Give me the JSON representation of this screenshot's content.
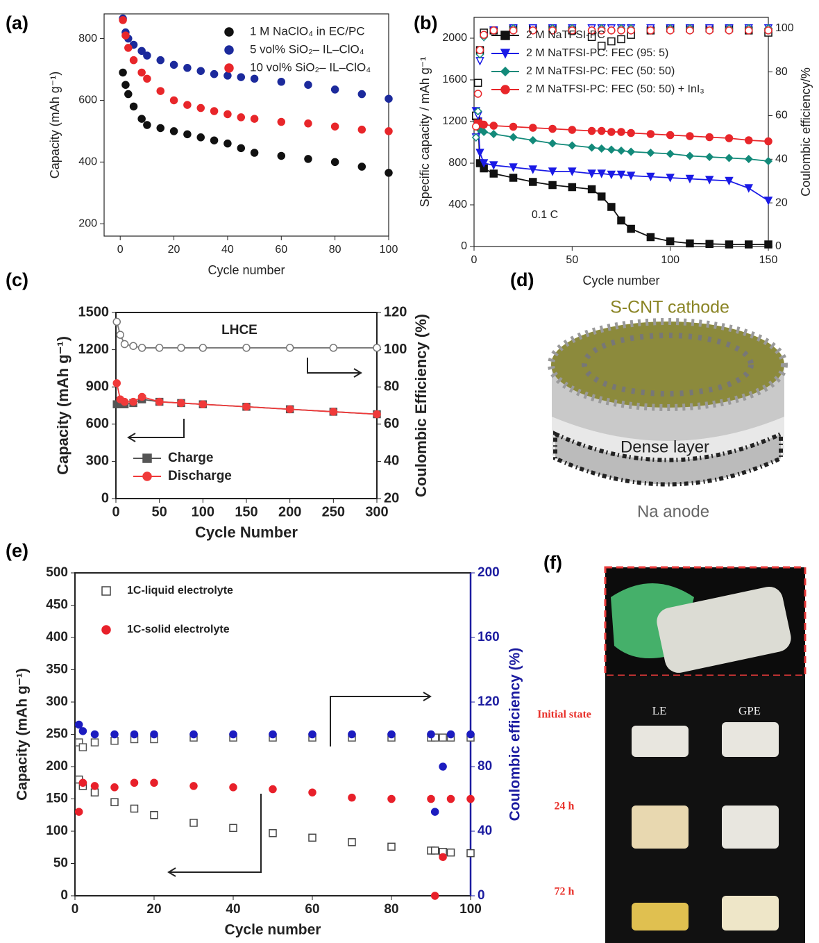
{
  "chart_data": [
    {
      "label": "(a)",
      "type": "scatter",
      "xlabel": "Cycle number",
      "ylabel": "Capacity (mAh g⁻¹)",
      "xlim": [
        -6,
        100
      ],
      "ylim": [
        160,
        880
      ],
      "xticks": [
        0,
        20,
        40,
        60,
        80,
        100
      ],
      "yticks": [
        200,
        400,
        600,
        800
      ],
      "legend": "upper right",
      "x": [
        1,
        2,
        3,
        5,
        8,
        10,
        15,
        20,
        25,
        30,
        35,
        40,
        45,
        50,
        60,
        70,
        80,
        90,
        100
      ],
      "series": [
        {
          "name": "1 M NaClO₄ in EC/PC",
          "color": "#111111",
          "marker": "circle",
          "filled": true,
          "line": false,
          "values": [
            690,
            650,
            620,
            580,
            540,
            520,
            510,
            500,
            490,
            480,
            470,
            460,
            445,
            430,
            420,
            410,
            400,
            385,
            365
          ]
        },
        {
          "name": "5 vol% SiO₂– IL–ClO₄",
          "color": "#1c2a9c",
          "marker": "circle",
          "filled": true,
          "line": false,
          "values": [
            865,
            820,
            800,
            780,
            760,
            745,
            730,
            715,
            705,
            695,
            685,
            680,
            675,
            670,
            660,
            650,
            635,
            620,
            605
          ]
        },
        {
          "name": "10 vol% SiO₂– IL–ClO₄",
          "color": "#e8262a",
          "marker": "circle",
          "filled": true,
          "line": false,
          "values": [
            860,
            810,
            770,
            730,
            690,
            670,
            630,
            600,
            585,
            575,
            565,
            555,
            545,
            540,
            530,
            525,
            515,
            505,
            500
          ]
        }
      ]
    },
    {
      "label": "(b)",
      "type": "scatter",
      "xlabel": "Cycle number",
      "ylabel": "Specific capacity / mAh g⁻¹",
      "y2label": "Coulombic efficiency/%",
      "xlim": [
        0,
        150
      ],
      "ylim": [
        0,
        2200
      ],
      "y2lim": [
        0,
        105
      ],
      "xticks": [
        0,
        50,
        100,
        150
      ],
      "yticks": [
        0,
        400,
        800,
        1200,
        1600,
        2000
      ],
      "y2ticks": [
        0,
        20,
        40,
        60,
        80,
        100
      ],
      "legend": "upper left",
      "annotations": [
        "0.1 C"
      ],
      "x": [
        1,
        2,
        3,
        5,
        10,
        20,
        30,
        40,
        50,
        60,
        65,
        70,
        75,
        80,
        90,
        100,
        110,
        120,
        130,
        140,
        150
      ],
      "series": [
        {
          "name": "2 M NaTFSI-PC",
          "color": "#111111",
          "marker": "square",
          "filled": true,
          "line": true,
          "values": [
            1250,
            1200,
            800,
            750,
            700,
            660,
            620,
            590,
            570,
            550,
            480,
            380,
            250,
            170,
            90,
            50,
            30,
            25,
            20,
            20,
            20
          ]
        },
        {
          "name": "2 M NaTFSI-PC: FEC (95: 5)",
          "color": "#1a1ae6",
          "marker": "triangle",
          "filled": true,
          "line": true,
          "values": [
            1300,
            1200,
            900,
            800,
            780,
            760,
            740,
            720,
            720,
            700,
            700,
            690,
            690,
            680,
            670,
            660,
            650,
            640,
            630,
            560,
            440
          ]
        },
        {
          "name": "2 M NaTFSI-PC: FEC (50: 50)",
          "color": "#138a7a",
          "marker": "diamond",
          "filled": true,
          "line": true,
          "values": [
            1250,
            1180,
            1120,
            1100,
            1080,
            1050,
            1020,
            990,
            970,
            950,
            940,
            930,
            920,
            910,
            900,
            890,
            870,
            860,
            850,
            840,
            820
          ]
        },
        {
          "name": "2 M NaTFSI-PC: FEC (50: 50) + InI₃",
          "color": "#e8262a",
          "marker": "circle",
          "filled": true,
          "line": true,
          "values": [
            1250,
            1200,
            1180,
            1170,
            1160,
            1150,
            1140,
            1130,
            1120,
            1110,
            1110,
            1100,
            1100,
            1090,
            1080,
            1070,
            1060,
            1050,
            1040,
            1020,
            1010
          ]
        },
        {
          "color": "#111111",
          "marker": "square",
          "filled": false,
          "line": false,
          "axis": "y2",
          "values": [
            60,
            75,
            90,
            98,
            99,
            100,
            100,
            100,
            99,
            96,
            92,
            94,
            95,
            97,
            99,
            100,
            100,
            100,
            100,
            99,
            98
          ]
        },
        {
          "color": "#1a1ae6",
          "marker": "triangle",
          "filled": false,
          "line": false,
          "axis": "y2",
          "values": [
            50,
            60,
            85,
            96,
            99,
            100,
            100,
            100,
            100,
            100,
            100,
            100,
            100,
            100,
            100,
            100,
            100,
            100,
            100,
            100,
            100
          ]
        },
        {
          "color": "#138a7a",
          "marker": "diamond",
          "filled": false,
          "line": false,
          "axis": "y2",
          "values": [
            50,
            62,
            88,
            96,
            99,
            100,
            99,
            100,
            100,
            99,
            100,
            99,
            100,
            100,
            99,
            100,
            100,
            99,
            100,
            100,
            100
          ]
        },
        {
          "color": "#e8262a",
          "marker": "circle",
          "filled": false,
          "line": false,
          "axis": "y2",
          "values": [
            55,
            70,
            90,
            97,
            99,
            99,
            99,
            99,
            99,
            99,
            99,
            99,
            99,
            99,
            99,
            99,
            99,
            99,
            99,
            99,
            99
          ]
        }
      ]
    },
    {
      "label": "(c)",
      "type": "scatter",
      "xlabel": "Cycle Number",
      "ylabel": "Capacity (mAh g⁻¹)",
      "y2label": "Coulombic Efficiency (%)",
      "xlim": [
        0,
        300
      ],
      "ylim": [
        0,
        1500
      ],
      "y2lim": [
        20,
        120
      ],
      "xticks": [
        0,
        50,
        100,
        150,
        200,
        250,
        300
      ],
      "yticks": [
        0,
        300,
        600,
        900,
        1200,
        1500
      ],
      "y2ticks": [
        20,
        40,
        60,
        80,
        100,
        120
      ],
      "legend": "lower left",
      "annotations": [
        "LHCE"
      ],
      "x": [
        1,
        5,
        10,
        20,
        30,
        50,
        75,
        100,
        150,
        200,
        250,
        300
      ],
      "series": [
        {
          "name": "Charge",
          "color": "#555555",
          "marker": "square",
          "filled": true,
          "line": true,
          "values": [
            760,
            760,
            760,
            770,
            800,
            780,
            770,
            760,
            740,
            720,
            700,
            680
          ]
        },
        {
          "name": "Discharge",
          "color": "#f03a3a",
          "marker": "circle",
          "filled": true,
          "line": true,
          "values": [
            930,
            800,
            780,
            780,
            820,
            780,
            770,
            760,
            740,
            720,
            700,
            680
          ]
        },
        {
          "color": "#777777",
          "marker": "circle",
          "filled": false,
          "line": true,
          "axis": "y2",
          "values": [
            115,
            108,
            103,
            102,
            101,
            101,
            101,
            101,
            101,
            101,
            101,
            101
          ]
        }
      ]
    },
    {
      "label": "(e)",
      "type": "scatter",
      "xlabel": "Cycle number",
      "ylabel": "Capacity (mAh g⁻¹)",
      "y2label": "Coulombic efficiency (%)",
      "y2color": "#1c1ca0",
      "xlim": [
        0,
        100
      ],
      "ylim": [
        0,
        500
      ],
      "y2lim": [
        0,
        200
      ],
      "xticks": [
        0,
        20,
        40,
        60,
        80,
        100
      ],
      "yticks": [
        0,
        50,
        100,
        150,
        200,
        250,
        300,
        350,
        400,
        450,
        500
      ],
      "y2ticks": [
        0,
        40,
        80,
        120,
        160,
        200
      ],
      "legend": "upper left",
      "x": [
        1,
        2,
        5,
        10,
        15,
        20,
        30,
        40,
        50,
        60,
        70,
        80,
        90,
        91,
        93,
        95,
        100
      ],
      "series": [
        {
          "name": "1C-liquid electrolyte",
          "color": "#444444",
          "marker": "square",
          "filled": false,
          "line": false,
          "values": [
            180,
            170,
            160,
            145,
            135,
            125,
            113,
            105,
            97,
            90,
            83,
            76,
            70,
            70,
            68,
            67,
            66
          ]
        },
        {
          "name": "1C-solid electrolyte",
          "color": "#e8202a",
          "marker": "circle",
          "filled": true,
          "line": false,
          "values": [
            130,
            175,
            170,
            168,
            175,
            175,
            170,
            168,
            165,
            160,
            152,
            150,
            150,
            0,
            60,
            150,
            150
          ]
        },
        {
          "color": "#555555",
          "marker": "square",
          "filled": false,
          "line": false,
          "axis": "y2",
          "values": [
            95,
            92,
            95,
            96,
            97,
            97,
            98,
            98,
            98,
            98,
            98,
            98,
            98,
            98,
            98,
            98,
            98
          ]
        },
        {
          "color": "#1c1cc0",
          "marker": "circle",
          "filled": true,
          "line": false,
          "axis": "y2",
          "values": [
            106,
            102,
            100,
            100,
            100,
            100,
            100,
            100,
            100,
            100,
            100,
            100,
            100,
            52,
            80,
            100,
            100
          ]
        }
      ]
    }
  ],
  "illustrations": [
    {
      "label": "(d)",
      "texts": [
        "S-CNT cathode",
        "Dense layer",
        "Na anode"
      ]
    },
    {
      "label": "(f)",
      "texts": [
        "LE",
        "GPE",
        "Initial state",
        "24 h",
        "72 h"
      ]
    }
  ]
}
